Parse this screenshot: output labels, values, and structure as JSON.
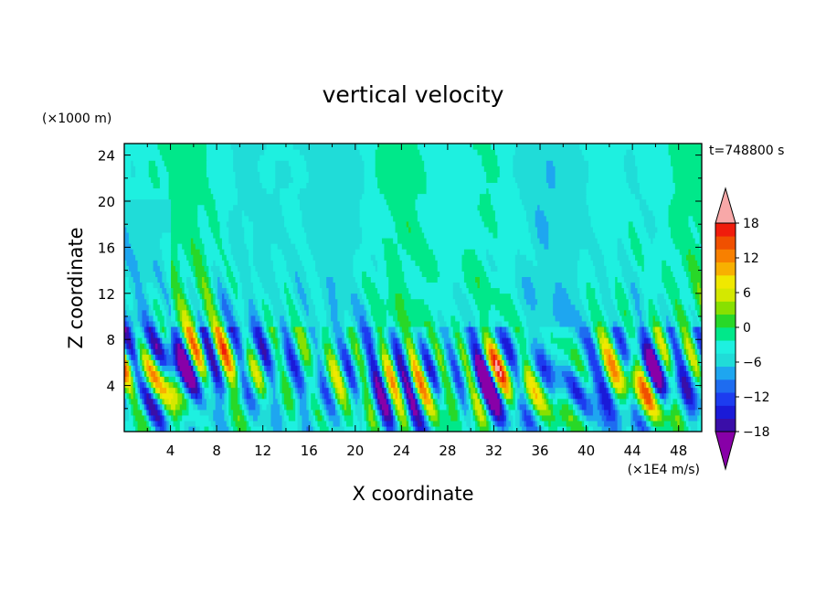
{
  "chart_data": {
    "type": "heatmap",
    "title": "vertical velocity",
    "xlabel": "X coordinate",
    "ylabel": "Z coordinate",
    "x_unit": "(×1E4 m/s)",
    "y_unit": "(×1000 m)",
    "time_label": "t=748800 s",
    "xlim": [
      0,
      50
    ],
    "ylim": [
      0,
      25
    ],
    "x_ticks": [
      4,
      8,
      12,
      16,
      20,
      24,
      28,
      32,
      36,
      40,
      44,
      48
    ],
    "y_ticks": [
      4,
      8,
      12,
      16,
      20,
      24
    ],
    "colorbar": {
      "range": [
        -21,
        21
      ],
      "step": 3,
      "tick_values": [
        18,
        12,
        6,
        0,
        -6,
        -12,
        -18
      ],
      "tick_labels": [
        "18",
        "12",
        "6",
        "0",
        "−6",
        "−12",
        "−18"
      ],
      "colors": [
        "#8800a8",
        "#3a0ea8",
        "#1a1ad8",
        "#1c3cf0",
        "#1e6cf0",
        "#1ea6f0",
        "#20dcd8",
        "#1ef0e0",
        "#00e88a",
        "#28d828",
        "#88e000",
        "#d4e800",
        "#f0e800",
        "#f8b000",
        "#f88000",
        "#f05000",
        "#f01c0c",
        "#f8a8a8"
      ]
    }
  }
}
